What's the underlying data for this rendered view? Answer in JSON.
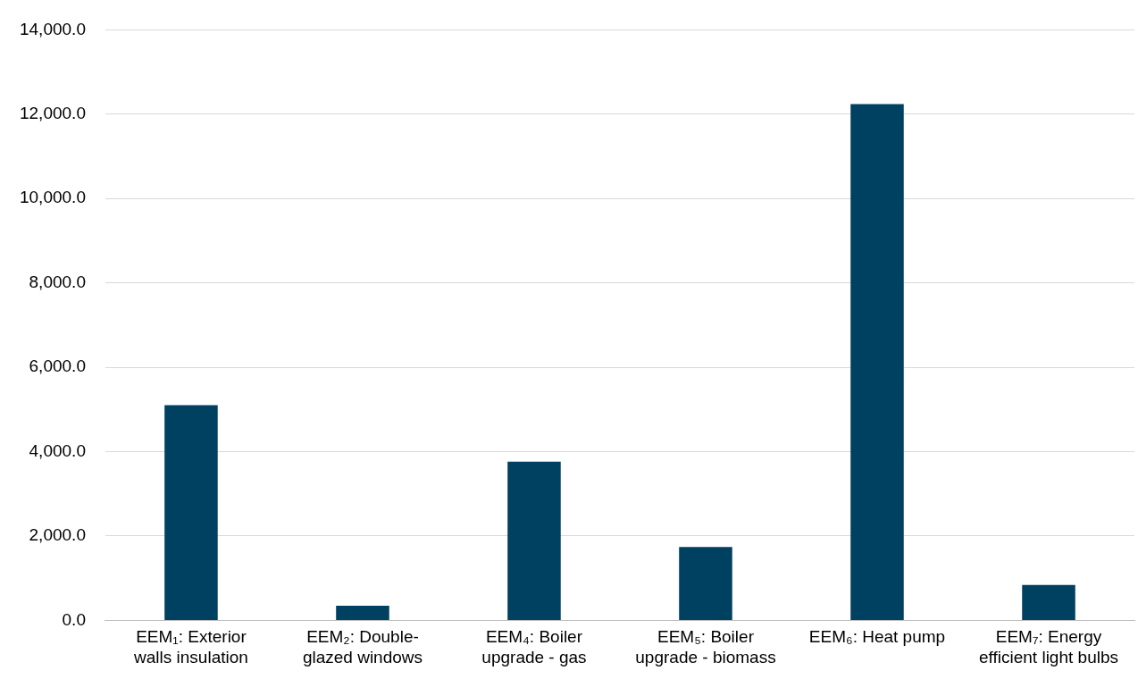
{
  "chart_data": {
    "type": "bar",
    "categories": [
      "EEM₁: Exterior walls insulation",
      "EEM₂: Double-glazed windows",
      "EEM₄: Boiler upgrade - gas",
      "EEM₅: Boiler upgrade - biomass",
      "EEM₆: Heat pump",
      "EEM₇: Energy efficient light bulbs"
    ],
    "values": [
      5100,
      350,
      3760,
      1740,
      12240,
      840
    ],
    "color": "#004060",
    "ylim": [
      0,
      14000
    ],
    "yticks": [
      {
        "value": 0,
        "label": "0.0"
      },
      {
        "value": 2000,
        "label": "2,000.0"
      },
      {
        "value": 4000,
        "label": "4,000.0"
      },
      {
        "value": 6000,
        "label": "6,000.0"
      },
      {
        "value": 8000,
        "label": "8,000.0"
      },
      {
        "value": 10000,
        "label": "10,000.0"
      },
      {
        "value": 12000,
        "label": "12,000.0"
      },
      {
        "value": 14000,
        "label": "14,000.0"
      }
    ],
    "grid": "y",
    "legend": false
  }
}
